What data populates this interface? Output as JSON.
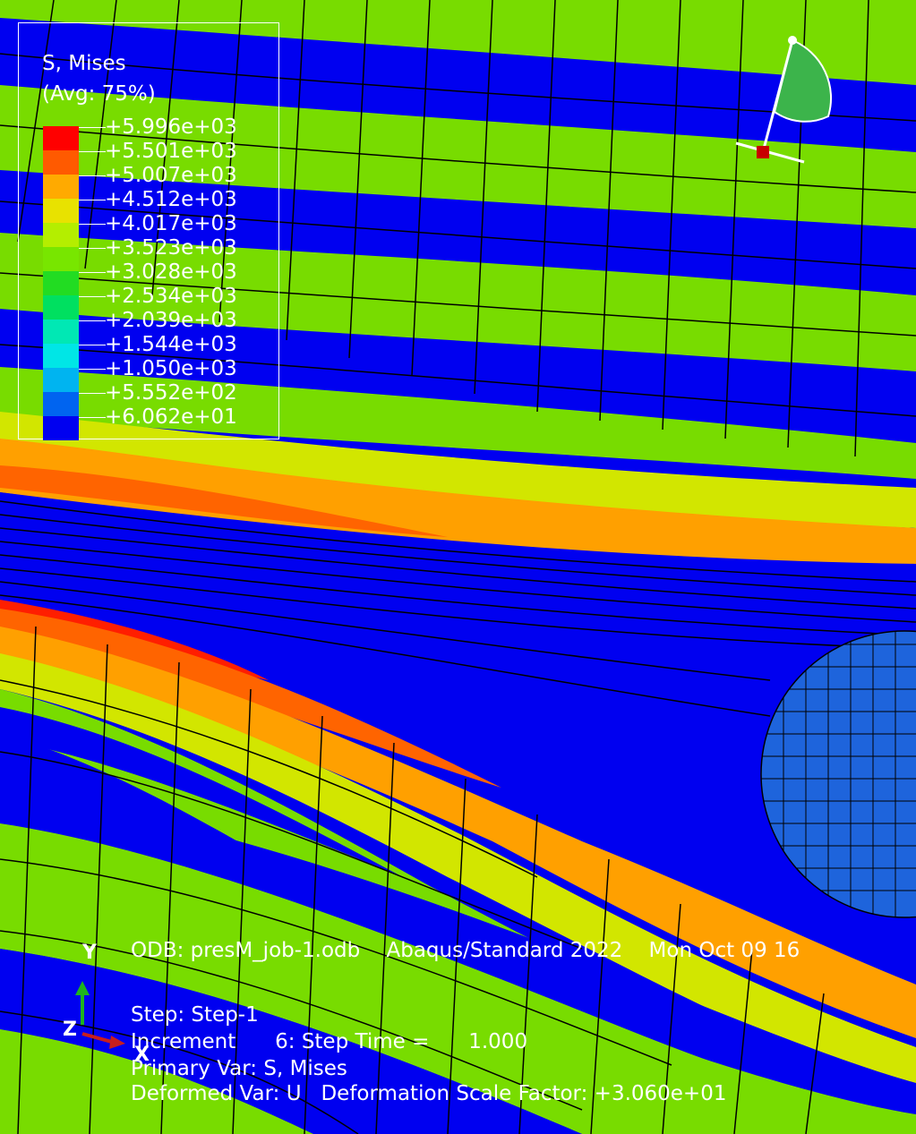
{
  "legend": {
    "title": "S, Mises",
    "subtitle": "(Avg: 75%)",
    "levels": [
      {
        "label": "+5.996e+03",
        "color": "#ff0000"
      },
      {
        "label": "+5.501e+03",
        "color": "#ff5a00"
      },
      {
        "label": "+5.007e+03",
        "color": "#ffaa00"
      },
      {
        "label": "+4.512e+03",
        "color": "#e8e200"
      },
      {
        "label": "+4.017e+03",
        "color": "#b4ee00"
      },
      {
        "label": "+3.523e+03",
        "color": "#78e600"
      },
      {
        "label": "+3.028e+03",
        "color": "#22dc22"
      },
      {
        "label": "+2.534e+03",
        "color": "#00e060"
      },
      {
        "label": "+2.039e+03",
        "color": "#00e8b4"
      },
      {
        "label": "+1.544e+03",
        "color": "#00e6e6"
      },
      {
        "label": "+1.050e+03",
        "color": "#00b4f0"
      },
      {
        "label": "+5.552e+02",
        "color": "#0064f0"
      },
      {
        "label": "+6.062e+01",
        "color": "#0000f0"
      }
    ]
  },
  "info": {
    "line1": "ODB: presM_job-1.odb    Abaqus/Standard 2022    Mon Oct 09 16",
    "step": "Step: Step-1",
    "increment": "Increment      6: Step Time =      1.000",
    "primary_var": "Primary Var: S, Mises",
    "deformed_var": "Deformed Var: U   Deformation Scale Factor: +3.060e+01"
  },
  "view_triad": {
    "y": "Y",
    "z": "Z",
    "x": "X"
  },
  "colors": {
    "blue": "#0000f0",
    "green": "#78dc00",
    "yellow": "#d2e600",
    "orange": "#ffa000",
    "darkorange": "#ff6400",
    "red": "#ff1e00",
    "sphere": "#1e64dc",
    "mesh_line": "#000000"
  }
}
